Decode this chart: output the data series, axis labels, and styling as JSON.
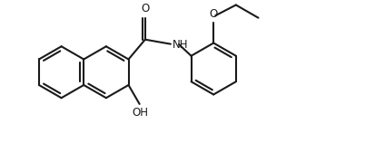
{
  "bg_color": "#ffffff",
  "line_color": "#1a1a1a",
  "line_width": 1.5,
  "font_size": 8.5,
  "figsize": [
    4.24,
    1.58
  ],
  "dpi": 100,
  "xlim": [
    0,
    10
  ],
  "ylim": [
    0,
    3.73
  ]
}
